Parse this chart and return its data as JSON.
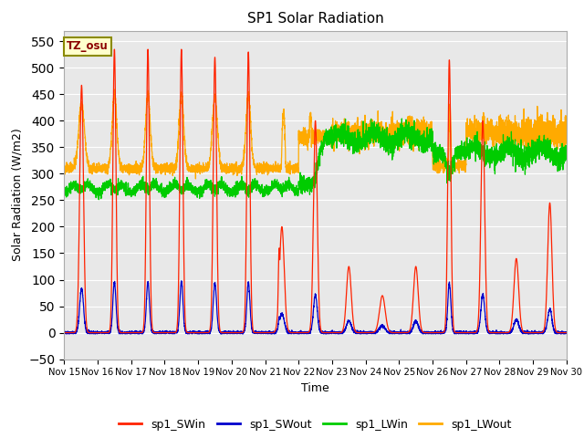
{
  "title": "SP1 Solar Radiation",
  "xlabel": "Time",
  "ylabel": "Solar Radiation (W/m2)",
  "ylim": [
    -50,
    570
  ],
  "background_color": "#e8e8e8",
  "colors": {
    "sp1_SWin": "#ff2200",
    "sp1_SWout": "#0000cc",
    "sp1_LWin": "#00cc00",
    "sp1_LWout": "#ffaa00"
  },
  "tz_label": "TZ_osu",
  "x_start": 15,
  "x_end": 30,
  "x_ticks": [
    15,
    16,
    17,
    18,
    19,
    20,
    21,
    22,
    23,
    24,
    25,
    26,
    27,
    28,
    29,
    30
  ],
  "x_tick_labels": [
    "Nov 15",
    "Nov 16",
    "Nov 17",
    "Nov 18",
    "Nov 19",
    "Nov 20",
    "Nov 21",
    "Nov 22",
    "Nov 23",
    "Nov 24",
    "Nov 25",
    "Nov 26",
    "Nov 27",
    "Nov 28",
    "Nov 29",
    "Nov 30"
  ]
}
